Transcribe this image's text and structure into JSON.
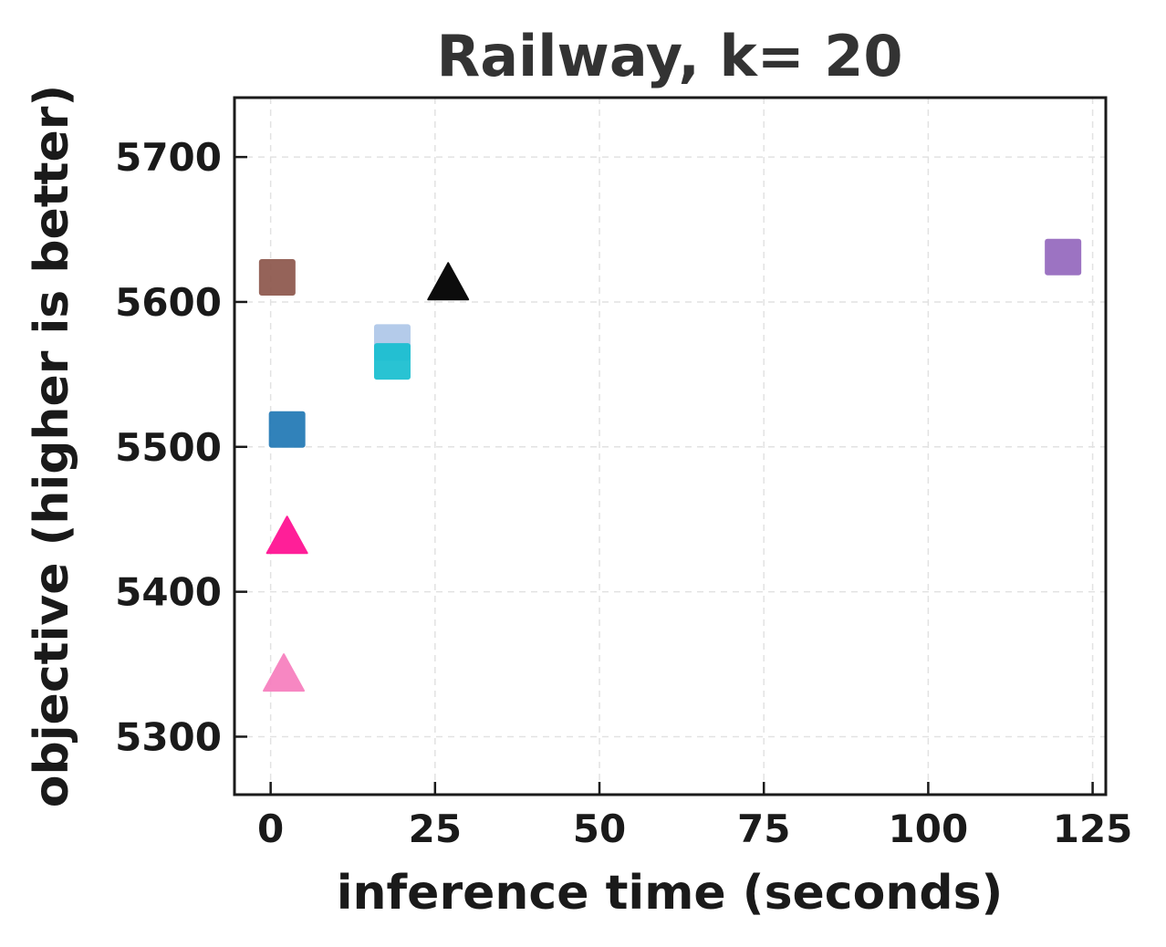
{
  "chart_data": {
    "type": "scatter",
    "title": "Railway, k= 20",
    "xlabel": "inference time (seconds)",
    "ylabel": "objective (higher is better)",
    "xlim": [
      -5.5,
      127
    ],
    "ylim": [
      5260,
      5741
    ],
    "xticks": [
      0,
      25,
      50,
      75,
      100,
      125
    ],
    "yticks": [
      5300,
      5400,
      5500,
      5600,
      5700
    ],
    "grid": true,
    "legend": "none",
    "points": [
      {
        "x": 1.0,
        "y": 5617,
        "marker": "square",
        "color": "#8c564b"
      },
      {
        "x": 2.5,
        "y": 5512,
        "marker": "square",
        "color": "#1f77b4"
      },
      {
        "x": 18.5,
        "y": 5572,
        "marker": "square",
        "color": "#aec7e8"
      },
      {
        "x": 18.5,
        "y": 5559,
        "marker": "square",
        "color": "#17becf"
      },
      {
        "x": 120.5,
        "y": 5631,
        "marker": "square",
        "color": "#9467bd"
      },
      {
        "x": 27.0,
        "y": 5613,
        "marker": "triangle",
        "color": "#000000"
      },
      {
        "x": 2.5,
        "y": 5438,
        "marker": "triangle",
        "color": "#ff1493"
      },
      {
        "x": 2.0,
        "y": 5343,
        "marker": "triangle",
        "color": "#f781bf"
      }
    ]
  }
}
